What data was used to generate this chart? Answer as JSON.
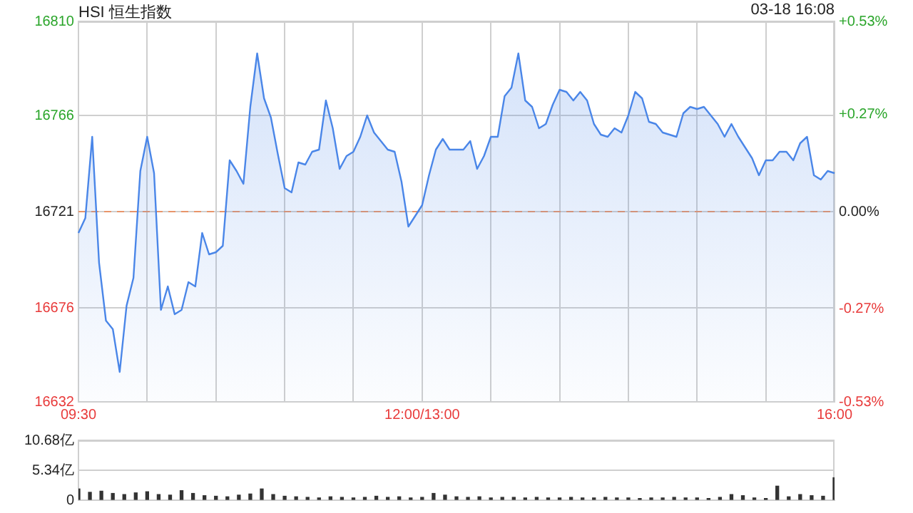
{
  "chart_data": [
    {
      "type": "area",
      "title": "HSI 恒生指数",
      "annotations": [
        "03-18 16:08"
      ],
      "categories": [
        "09:30",
        null,
        null,
        null,
        null,
        null,
        null,
        null,
        null,
        null,
        null,
        null,
        null,
        null,
        null,
        null,
        null,
        null,
        null,
        null,
        null,
        null,
        null,
        null,
        null,
        null,
        null,
        null,
        null,
        null,
        null,
        null,
        null,
        null,
        null,
        null,
        null,
        null,
        null,
        null,
        null,
        null,
        null,
        null,
        null,
        null,
        null,
        null,
        null,
        null,
        "12:00/13:00",
        null,
        null,
        null,
        null,
        null,
        null,
        null,
        null,
        null,
        null,
        null,
        null,
        null,
        null,
        null,
        null,
        null,
        null,
        null,
        null,
        null,
        null,
        null,
        null,
        null,
        null,
        null,
        null,
        null,
        null,
        null,
        null,
        null,
        null,
        null,
        null,
        null,
        null,
        null,
        null,
        null,
        null,
        null,
        null,
        null,
        null,
        null,
        null,
        null,
        null,
        null,
        null,
        null,
        null,
        null,
        null,
        null,
        null,
        null,
        "16:00"
      ],
      "series": [
        {
          "color": "#4a86e8",
          "values": [
            16711,
            16718,
            16756,
            16697,
            16670,
            16666,
            16646,
            16677,
            16690,
            16740,
            16756,
            16739,
            16675,
            16686,
            16673,
            16675,
            16688,
            16686,
            16711,
            16701,
            16702,
            16705,
            16745,
            16740,
            16734,
            16770,
            16795,
            16774,
            16765,
            16748,
            16732,
            16730,
            16744,
            16743,
            16749,
            16750,
            16773,
            16760,
            16741,
            16747,
            16749,
            16756,
            16766,
            16758,
            16754,
            16750,
            16749,
            16735,
            16714,
            16719,
            16724,
            16738,
            16750,
            16755,
            16750,
            16750,
            16750,
            16754,
            16741,
            16747,
            16756,
            16756,
            16775,
            16779,
            16795,
            16773,
            16770,
            16760,
            16762,
            16771,
            16778,
            16777,
            16773,
            16777,
            16773,
            16762,
            16757,
            16756,
            16760,
            16758,
            16766,
            16777,
            16774,
            16763,
            16762,
            16758,
            16757,
            16756,
            16767,
            16770,
            16769,
            16770,
            16766,
            16762,
            16756,
            16762,
            16756,
            16751,
            16746,
            16738,
            16745,
            16745,
            16749,
            16749,
            16745,
            16753,
            16756,
            16738,
            16736,
            16740,
            16739
          ]
        }
      ],
      "ylim": [
        16632,
        16810
      ],
      "yticks": [
        16632,
        16676,
        16721,
        16766,
        16810
      ],
      "y2lim": [
        -0.53,
        0.53
      ],
      "y2ticks": [
        {
          "value": -0.53,
          "label": "-0.53%"
        },
        {
          "value": -0.27,
          "label": "-0.27%"
        },
        {
          "value": 0,
          "label": "0.00%"
        },
        {
          "value": 0.27,
          "label": "+0.27%"
        },
        {
          "value": 0.53,
          "label": "+0.53%"
        }
      ],
      "ref_lines": [
        {
          "axis": "y",
          "value": 16721,
          "color": "#e8956a",
          "line_style": "dashed"
        }
      ],
      "grid": true,
      "legend": false,
      "marker": "none"
    },
    {
      "type": "bar",
      "categories": [
        null,
        null,
        null,
        null,
        null,
        null,
        null,
        null,
        null,
        null,
        null,
        null,
        null,
        null,
        null,
        null,
        null,
        null,
        null,
        null,
        null,
        null,
        null,
        null,
        null,
        null,
        null,
        null,
        null,
        null,
        null,
        null,
        null,
        null,
        null,
        null,
        null,
        null,
        null,
        null,
        null,
        null,
        null,
        null,
        null,
        null,
        null,
        null,
        null,
        null,
        null,
        null,
        null,
        null,
        null,
        null,
        null,
        null,
        null,
        null,
        null,
        null,
        null,
        null,
        null,
        null,
        null
      ],
      "values": [
        2.0,
        1.4,
        1.6,
        1.2,
        1.0,
        1.3,
        1.5,
        1.0,
        0.9,
        1.7,
        1.2,
        0.8,
        0.7,
        0.6,
        0.9,
        1.1,
        2.0,
        1.0,
        0.7,
        0.6,
        0.5,
        0.4,
        0.6,
        0.5,
        0.4,
        0.5,
        0.7,
        0.5,
        0.6,
        0.4,
        0.5,
        1.2,
        0.9,
        0.6,
        0.5,
        0.6,
        0.4,
        0.5,
        0.5,
        0.4,
        0.5,
        0.4,
        0.4,
        0.5,
        0.4,
        0.4,
        0.5,
        0.4,
        0.4,
        0.3,
        0.4,
        0.4,
        0.5,
        0.4,
        0.4,
        0.3,
        0.5,
        1.0,
        0.8,
        0.4,
        0.3,
        2.5,
        0.6,
        1.0,
        0.8,
        0.7,
        4.0
      ],
      "color": "#333333",
      "ylim": [
        0,
        10.68
      ],
      "yticks": [
        0,
        {
          "value": 5.34,
          "label": "5.34亿"
        },
        {
          "value": 10.68,
          "label": "10.68亿"
        }
      ],
      "tick_labels": "y",
      "grid": "y",
      "legend": false
    }
  ]
}
